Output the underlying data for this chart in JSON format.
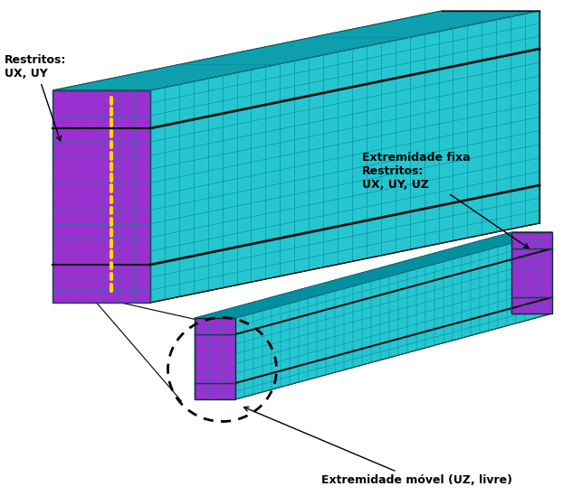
{
  "bg_color": "#ffffff",
  "teal_color": "#26c6d0",
  "teal_dark": "#1aa8b5",
  "purple_color": "#9b30d0",
  "grid_color": "#008899",
  "dark_line_color": "#111111",
  "yellow_dashed_color": "#ffd700",
  "label_restritos_top": "Restritos:",
  "label_restritos_top_sub": "UX, UY",
  "label_extremidade_fixa": "Extremidade fixa",
  "label_restritos_fixa": "Restritos:",
  "label_restritos_fixa_sub": "UX, UY, UZ",
  "label_extremidade_movel": "Extremidade móvel (UZ, livre)",
  "figsize": [
    6.22,
    5.49
  ],
  "dpi": 100
}
